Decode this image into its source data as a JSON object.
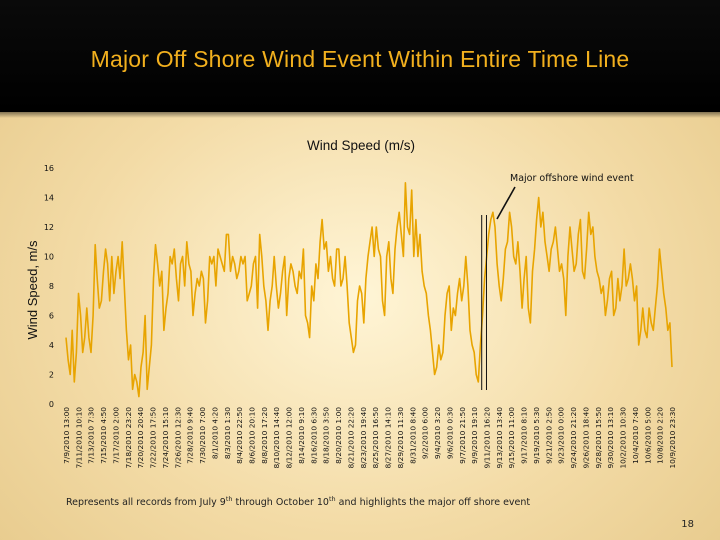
{
  "slide": {
    "title": "Major Off Shore Wind Event Within Entire Time Line",
    "footnote_a": "Represents all records from July 9",
    "footnote_sup1": "th",
    "footnote_b": " through October 10",
    "footnote_sup2": "th",
    "footnote_c": " and highlights the major off shore event",
    "page_number": "18"
  },
  "colors": {
    "title": "#f2b01e",
    "title_band": "#000000",
    "series": "#e8a400",
    "highlight_lines": "#111111"
  },
  "chart_data": {
    "type": "line",
    "title": "Wind Speed (m/s)",
    "ylabel": "Wind Speed, m/s",
    "xlabel": "",
    "ylim": [
      0,
      16
    ],
    "yticks": [
      0,
      2,
      4,
      6,
      8,
      10,
      12,
      14,
      16
    ],
    "grid": false,
    "legend": "none",
    "x_tick_labels": [
      "7/9/2010 13:00",
      "7/11/2010 10:10",
      "7/13/2010 7:30",
      "7/15/2010 4:50",
      "7/17/2010 2:00",
      "7/18/2010 23:20",
      "7/20/2010 20:40",
      "7/22/2010 17:50",
      "7/24/2010 15:10",
      "7/26/2010 12:30",
      "7/28/2010 9:40",
      "7/30/2010 7:00",
      "8/1/2010 4:20",
      "8/3/2010 1:30",
      "8/4/2010 22:50",
      "8/6/2010 20:10",
      "8/8/2010 17:20",
      "8/10/2010 14:40",
      "8/12/2010 12:00",
      "8/14/2010 9:10",
      "8/16/2010 6:30",
      "8/18/2010 3:50",
      "8/20/2010 1:00",
      "8/21/2010 22:20",
      "8/23/2010 19:40",
      "8/25/2010 16:50",
      "8/27/2010 14:10",
      "8/29/2010 11:30",
      "8/31/2010 8:40",
      "9/2/2010 6:00",
      "9/4/2010 3:20",
      "9/6/2010 0:30",
      "9/7/2010 21:50",
      "9/9/2010 19:10",
      "9/11/2010 16:20",
      "9/13/2010 13:40",
      "9/15/2010 11:00",
      "9/17/2010 8:10",
      "9/19/2010 5:30",
      "9/21/2010 2:50",
      "9/23/2010 0:00",
      "9/24/2010 21:20",
      "9/26/2010 18:40",
      "9/28/2010 15:50",
      "9/30/2010 13:10",
      "10/2/2010 10:30",
      "10/4/2010 7:40",
      "10/6/2010 5:00",
      "10/8/2010 2:20",
      "10/9/2010 23:30"
    ],
    "values": [
      4.5,
      3.0,
      2.0,
      5.0,
      1.5,
      3.5,
      7.5,
      6.0,
      3.5,
      4.5,
      6.5,
      4.5,
      3.5,
      6.0,
      10.8,
      8.5,
      6.5,
      7.0,
      9.0,
      10.5,
      9.5,
      7.0,
      10.0,
      7.5,
      9.0,
      10.0,
      8.5,
      11.0,
      8.0,
      5.0,
      3.0,
      4.0,
      1.0,
      2.0,
      1.5,
      0.5,
      2.5,
      3.5,
      6.0,
      1.0,
      2.5,
      4.0,
      8.5,
      10.8,
      9.5,
      8.0,
      9.0,
      5.0,
      6.5,
      7.5,
      10.0,
      9.5,
      10.5,
      8.5,
      7.0,
      9.5,
      10.0,
      8.0,
      11.0,
      9.5,
      9.0,
      6.0,
      7.5,
      8.5,
      8.0,
      9.0,
      8.5,
      5.5,
      7.0,
      10.0,
      9.5,
      10.0,
      8.0,
      10.5,
      10.0,
      9.5,
      9.0,
      11.5,
      11.5,
      9.0,
      10.0,
      9.5,
      8.5,
      9.0,
      10.0,
      9.5,
      10.0,
      7.0,
      7.5,
      8.0,
      9.5,
      10.0,
      6.5,
      11.5,
      10.0,
      8.0,
      7.0,
      5.0,
      7.0,
      8.0,
      10.0,
      8.0,
      6.5,
      7.5,
      9.0,
      10.0,
      6.0,
      8.5,
      9.5,
      9.0,
      8.0,
      7.5,
      9.0,
      8.5,
      10.5,
      6.0,
      5.5,
      4.5,
      8.0,
      7.0,
      9.5,
      8.5,
      11.0,
      12.5,
      10.5,
      11.0,
      9.0,
      10.0,
      8.5,
      8.0,
      10.5,
      10.5,
      8.0,
      8.5,
      10.0,
      8.0,
      5.5,
      4.5,
      3.5,
      4.0,
      7.0,
      8.0,
      7.5,
      5.5,
      8.5,
      10.0,
      11.0,
      12.0,
      10.0,
      12.0,
      10.5,
      10.0,
      7.0,
      6.0,
      10.0,
      11.0,
      8.5,
      7.5,
      10.5,
      12.0,
      13.0,
      11.5,
      10.0,
      15.0,
      12.0,
      11.5,
      14.5,
      10.0,
      12.5,
      10.0,
      11.5,
      9.0,
      8.0,
      7.5,
      6.0,
      5.0,
      3.5,
      2.0,
      2.5,
      4.0,
      3.0,
      3.5,
      6.0,
      7.5,
      8.0,
      5.0,
      6.5,
      6.0,
      7.5,
      8.5,
      7.0,
      8.0,
      10.0,
      8.0,
      5.0,
      4.0,
      3.5,
      2.0,
      1.5,
      4.0,
      6.0,
      8.5,
      10.0,
      11.5,
      12.5,
      13.0,
      12.0,
      9.5,
      8.0,
      7.0,
      8.5,
      10.5,
      11.0,
      13.0,
      12.0,
      10.0,
      9.5,
      11.0,
      9.0,
      6.5,
      8.5,
      10.0,
      6.5,
      5.5,
      9.0,
      10.5,
      12.5,
      14.0,
      12.0,
      13.0,
      11.0,
      10.0,
      9.0,
      10.5,
      11.0,
      12.0,
      10.5,
      9.0,
      9.5,
      8.5,
      6.0,
      10.0,
      12.0,
      10.5,
      9.0,
      9.5,
      11.5,
      12.5,
      9.0,
      8.5,
      10.5,
      13.0,
      11.5,
      12.0,
      10.0,
      9.0,
      8.5,
      7.5,
      8.0,
      6.0,
      7.0,
      8.5,
      9.0,
      6.0,
      6.5,
      8.5,
      7.0,
      8.0,
      10.5,
      8.0,
      8.5,
      9.5,
      8.5,
      7.0,
      8.0,
      4.0,
      5.0,
      6.5,
      5.0,
      4.5,
      6.5,
      5.5,
      5.0,
      6.5,
      8.0,
      10.5,
      9.0,
      7.5,
      6.5,
      5.0,
      5.5,
      2.5
    ],
    "annotations": [
      {
        "text": "Major offshore wind event",
        "x_start": "9/10/2010 22:50",
        "x_end": "9/11/2010 16:20"
      }
    ]
  }
}
